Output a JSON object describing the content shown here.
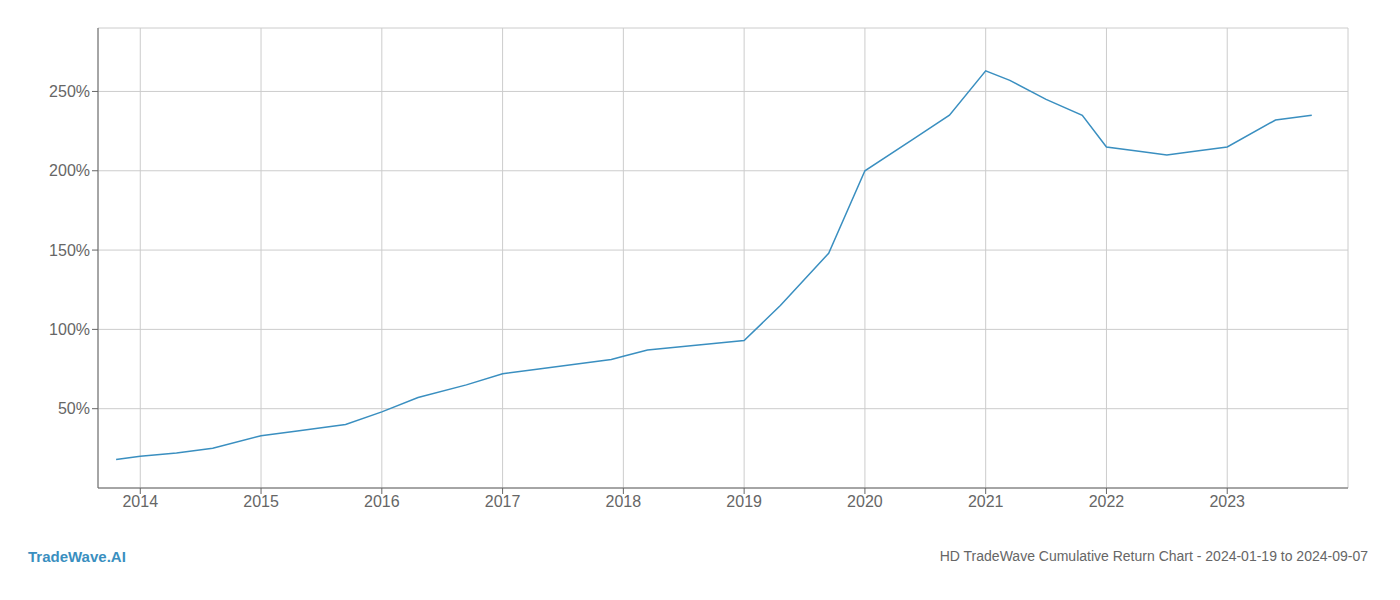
{
  "chart_data": {
    "type": "line",
    "title": "HD TradeWave Cumulative Return Chart - 2024-01-19 to 2024-09-07",
    "annotations": [
      "TradeWave.AI"
    ],
    "x": [
      2013.8,
      2014.0,
      2014.3,
      2014.6,
      2015.0,
      2015.3,
      2015.7,
      2016.0,
      2016.3,
      2016.7,
      2017.0,
      2017.3,
      2017.6,
      2017.9,
      2018.0,
      2018.2,
      2018.6,
      2019.0,
      2019.3,
      2019.7,
      2020.0,
      2020.4,
      2020.7,
      2021.0,
      2021.2,
      2021.5,
      2021.8,
      2022.0,
      2022.3,
      2022.5,
      2022.7,
      2023.0,
      2023.4,
      2023.7
    ],
    "values": [
      18,
      20,
      22,
      25,
      33,
      36,
      40,
      48,
      57,
      65,
      72,
      75,
      78,
      81,
      83,
      87,
      90,
      93,
      115,
      148,
      200,
      220,
      235,
      263,
      257,
      245,
      235,
      215,
      212,
      210,
      212,
      215,
      232,
      235
    ],
    "color": "#3a8fc0",
    "xlim": [
      2013.65,
      2024.0
    ],
    "ylim": [
      0,
      290
    ],
    "xticks": [
      2014,
      2015,
      2016,
      2017,
      2018,
      2019,
      2020,
      2021,
      2022,
      2023
    ],
    "yticks": [
      {
        "value": 50,
        "label": "50%"
      },
      {
        "value": 100,
        "label": "100%"
      },
      {
        "value": 150,
        "label": "150%"
      },
      {
        "value": 200,
        "label": "200%"
      },
      {
        "value": 250,
        "label": "250%"
      }
    ],
    "grid": true
  }
}
